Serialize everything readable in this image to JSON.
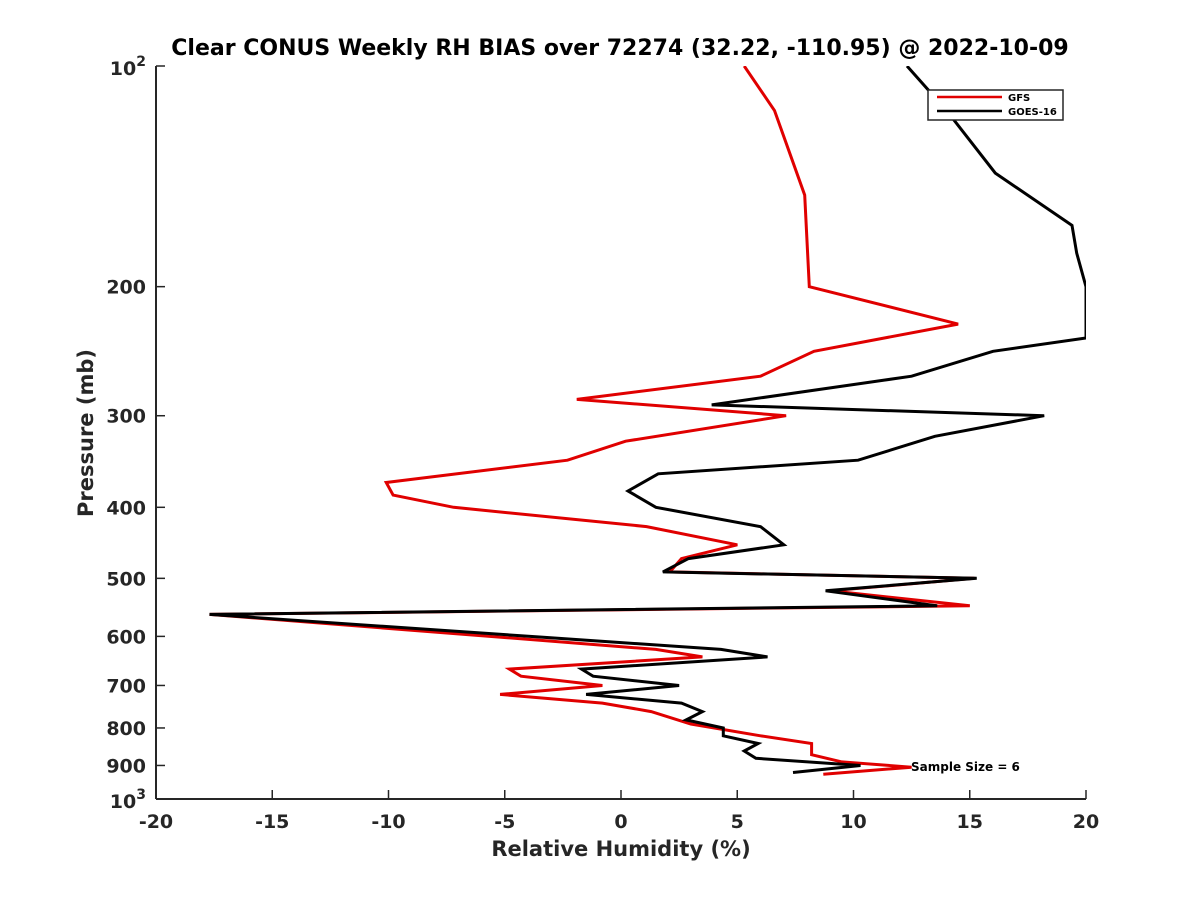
{
  "chart_data": {
    "type": "line",
    "title": "Clear CONUS Weekly RH BIAS over 72274 (32.22, -110.95) @ 2022-10-09",
    "xlabel": "Relative Humidity (%)",
    "ylabel": "Pressure (mb)",
    "xlim": [
      -20,
      20
    ],
    "ylim": [
      100,
      1000
    ],
    "y_scale": "log",
    "y_reversed": true,
    "grid": false,
    "legend_position": "top-right",
    "x_ticks": [
      -20,
      -15,
      -10,
      -5,
      0,
      5,
      10,
      15,
      20
    ],
    "x_tick_labels": [
      "-20",
      "-15",
      "-10",
      "-5",
      "0",
      "5",
      "10",
      "15",
      "20"
    ],
    "y_ticks": [
      200,
      300,
      400,
      500,
      600,
      700,
      800,
      900
    ],
    "y_tick_labels": [
      "200",
      "300",
      "400",
      "500",
      "600",
      "700",
      "800",
      "900"
    ],
    "y_exp_ticks": [
      {
        "value": 100,
        "base": "10",
        "exp": "2"
      },
      {
        "value": 1000,
        "base": "10",
        "exp": "3"
      }
    ],
    "annotation": "Sample Size = 6",
    "series": [
      {
        "name": "GFS",
        "color": "#e00000",
        "points": [
          {
            "x": 5.3,
            "y": 100
          },
          {
            "x": 6.6,
            "y": 115
          },
          {
            "x": 7.9,
            "y": 150
          },
          {
            "x": 8.1,
            "y": 200
          },
          {
            "x": 14.5,
            "y": 225
          },
          {
            "x": 8.3,
            "y": 245
          },
          {
            "x": 6.0,
            "y": 265
          },
          {
            "x": -1.9,
            "y": 285
          },
          {
            "x": 7.1,
            "y": 300
          },
          {
            "x": 0.2,
            "y": 325
          },
          {
            "x": -2.3,
            "y": 345
          },
          {
            "x": -10.1,
            "y": 370
          },
          {
            "x": -9.8,
            "y": 385
          },
          {
            "x": -7.2,
            "y": 400
          },
          {
            "x": 1.1,
            "y": 425
          },
          {
            "x": 5.0,
            "y": 450
          },
          {
            "x": 2.6,
            "y": 470
          },
          {
            "x": 2.1,
            "y": 490
          },
          {
            "x": 15.2,
            "y": 500
          },
          {
            "x": 9.0,
            "y": 520
          },
          {
            "x": 15.0,
            "y": 545
          },
          {
            "x": -17.7,
            "y": 560
          },
          {
            "x": 1.5,
            "y": 625
          },
          {
            "x": 3.5,
            "y": 640
          },
          {
            "x": -4.8,
            "y": 665
          },
          {
            "x": -4.3,
            "y": 680
          },
          {
            "x": -0.8,
            "y": 700
          },
          {
            "x": -5.2,
            "y": 720
          },
          {
            "x": -0.8,
            "y": 740
          },
          {
            "x": 1.3,
            "y": 760
          },
          {
            "x": 3.0,
            "y": 790
          },
          {
            "x": 6.0,
            "y": 820
          },
          {
            "x": 8.2,
            "y": 840
          },
          {
            "x": 8.2,
            "y": 870
          },
          {
            "x": 9.5,
            "y": 890
          },
          {
            "x": 12.5,
            "y": 905
          },
          {
            "x": 8.7,
            "y": 925
          }
        ]
      },
      {
        "name": "GOES-16",
        "color": "#000000",
        "points": [
          {
            "x": 12.3,
            "y": 100
          },
          {
            "x": 14.0,
            "y": 115
          },
          {
            "x": 16.1,
            "y": 140
          },
          {
            "x": 19.4,
            "y": 165
          },
          {
            "x": 19.6,
            "y": 180
          },
          {
            "x": 20.0,
            "y": 200
          },
          {
            "x": 20.0,
            "y": 235
          },
          {
            "x": 16.0,
            "y": 245
          },
          {
            "x": 12.5,
            "y": 265
          },
          {
            "x": 3.9,
            "y": 290
          },
          {
            "x": 18.2,
            "y": 300
          },
          {
            "x": 13.5,
            "y": 320
          },
          {
            "x": 10.2,
            "y": 345
          },
          {
            "x": 1.6,
            "y": 360
          },
          {
            "x": 0.3,
            "y": 380
          },
          {
            "x": 1.5,
            "y": 400
          },
          {
            "x": 6.0,
            "y": 425
          },
          {
            "x": 7.0,
            "y": 450
          },
          {
            "x": 2.9,
            "y": 470
          },
          {
            "x": 1.8,
            "y": 490
          },
          {
            "x": 15.3,
            "y": 500
          },
          {
            "x": 8.8,
            "y": 520
          },
          {
            "x": 13.6,
            "y": 545
          },
          {
            "x": -17.7,
            "y": 560
          },
          {
            "x": 4.3,
            "y": 625
          },
          {
            "x": 6.3,
            "y": 640
          },
          {
            "x": -1.7,
            "y": 665
          },
          {
            "x": -1.2,
            "y": 680
          },
          {
            "x": 2.5,
            "y": 700
          },
          {
            "x": -1.5,
            "y": 720
          },
          {
            "x": 2.6,
            "y": 740
          },
          {
            "x": 3.5,
            "y": 760
          },
          {
            "x": 2.8,
            "y": 780
          },
          {
            "x": 4.4,
            "y": 800
          },
          {
            "x": 4.4,
            "y": 820
          },
          {
            "x": 5.9,
            "y": 840
          },
          {
            "x": 5.3,
            "y": 860
          },
          {
            "x": 5.8,
            "y": 880
          },
          {
            "x": 10.3,
            "y": 900
          },
          {
            "x": 7.4,
            "y": 920
          }
        ]
      }
    ]
  }
}
